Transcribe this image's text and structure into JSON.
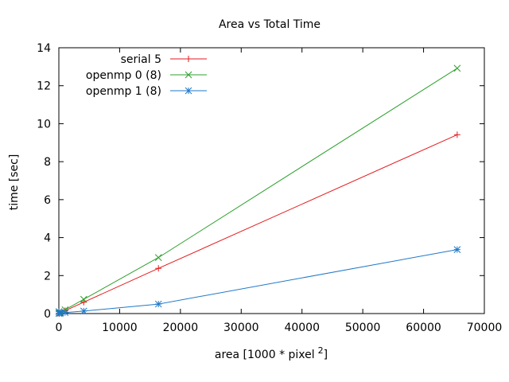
{
  "chart_data": {
    "type": "line",
    "title": "Area vs Total Time",
    "xlabel": "area [1000 * pixel",
    "xlabel_sup": "2",
    "xlabel_end": "]",
    "ylabel": "time [sec]",
    "xlim": [
      0,
      70000
    ],
    "ylim": [
      0,
      14
    ],
    "xticks": [
      0,
      10000,
      20000,
      30000,
      40000,
      50000,
      60000,
      70000
    ],
    "yticks": [
      0,
      2,
      4,
      6,
      8,
      10,
      12,
      14
    ],
    "grid": false,
    "legend_position": "top-left",
    "series": [
      {
        "name": "serial 5",
        "color": "#e41a1c",
        "marker": "plus",
        "x": [
          16,
          64,
          256,
          1024,
          4096,
          16384,
          65536
        ],
        "y": [
          0.01,
          0.01,
          0.04,
          0.15,
          0.6,
          2.38,
          9.42
        ]
      },
      {
        "name": "openmp 0 (8)",
        "color": "#2ca02c",
        "marker": "cross",
        "x": [
          16,
          64,
          256,
          1024,
          4096,
          16384,
          65536
        ],
        "y": [
          0.01,
          0.02,
          0.05,
          0.2,
          0.75,
          2.95,
          12.92
        ]
      },
      {
        "name": "openmp 1 (8)",
        "color": "#1f78c8",
        "marker": "star",
        "x": [
          16,
          64,
          256,
          1024,
          4096,
          16384,
          65536
        ],
        "y": [
          0.1,
          0.02,
          0.02,
          0.05,
          0.13,
          0.5,
          3.37
        ]
      }
    ]
  }
}
